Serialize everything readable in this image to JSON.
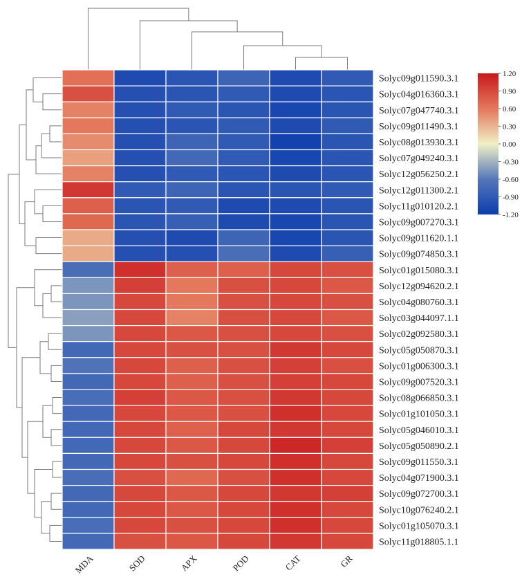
{
  "chart_data": {
    "type": "heatmap",
    "columns": [
      "MDA",
      "SOD",
      "APX",
      "POD",
      "CAT",
      "GR"
    ],
    "rows": [
      "Solyc09g011590.3.1",
      "Solyc04g016360.3.1",
      "Solyc07g047740.3.1",
      "Solyc09g011490.3.1",
      "Solyc08g013930.3.1",
      "Solyc07g049240.3.1",
      "Solyc12g056250.2.1",
      "Solyc12g011300.2.1",
      "Solyc11g010120.2.1",
      "Solyc09g007270.3.1",
      "Solyc09g011620.1.1",
      "Solyc09g074850.3.1",
      "Solyc01g015080.3.1",
      "Solyc12g094620.2.1",
      "Solyc04g080760.3.1",
      "Solyc03g044097.1.1",
      "Solyc02g092580.3.1",
      "Solyc05g050870.3.1",
      "Solyc01g006300.3.1",
      "Solyc09g007520.3.1",
      "Solyc08g066850.3.1",
      "Solyc01g101050.3.1",
      "Solyc05g046010.3.1",
      "Solyc05g050890.2.1",
      "Solyc09g011550.3.1",
      "Solyc04g071900.3.1",
      "Solyc09g072700.3.1",
      "Solyc10g076240.2.1",
      "Solyc01g105070.3.1",
      "Solyc11g018805.1.1"
    ],
    "values": [
      [
        0.65,
        -1.05,
        -0.95,
        -0.8,
        -1.05,
        -0.9
      ],
      [
        0.85,
        -1.0,
        -0.95,
        -0.9,
        -1.05,
        -0.95
      ],
      [
        0.55,
        -1.0,
        -0.9,
        -0.95,
        -1.1,
        -0.95
      ],
      [
        0.6,
        -1.0,
        -0.95,
        -0.9,
        -1.05,
        -0.9
      ],
      [
        0.5,
        -1.0,
        -0.8,
        -0.9,
        -1.15,
        -0.95
      ],
      [
        0.4,
        -1.0,
        -0.75,
        -0.9,
        -1.1,
        -0.95
      ],
      [
        0.55,
        -1.0,
        -0.9,
        -0.95,
        -1.05,
        -0.95
      ],
      [
        1.0,
        -0.9,
        -0.8,
        -0.95,
        -0.95,
        -0.9
      ],
      [
        0.75,
        -0.95,
        -0.9,
        -1.05,
        -1.05,
        -0.95
      ],
      [
        0.7,
        -0.95,
        -0.85,
        -1.05,
        -1.1,
        -0.95
      ],
      [
        0.35,
        -1.0,
        -1.05,
        -0.8,
        -1.1,
        -0.95
      ],
      [
        0.35,
        -1.0,
        -1.0,
        -0.7,
        -1.05,
        -0.85
      ],
      [
        -0.7,
        1.05,
        0.75,
        0.75,
        0.9,
        0.85
      ],
      [
        -0.45,
        0.95,
        0.6,
        0.85,
        0.9,
        0.8
      ],
      [
        -0.45,
        0.9,
        0.6,
        0.85,
        0.9,
        0.85
      ],
      [
        -0.4,
        0.9,
        0.55,
        0.85,
        0.9,
        0.8
      ],
      [
        -0.45,
        0.9,
        0.8,
        0.85,
        0.9,
        0.85
      ],
      [
        -0.75,
        0.9,
        0.85,
        0.85,
        1.0,
        0.9
      ],
      [
        -0.65,
        0.9,
        0.75,
        0.85,
        0.95,
        0.85
      ],
      [
        -0.75,
        0.9,
        0.75,
        0.85,
        0.95,
        0.9
      ],
      [
        -0.7,
        0.95,
        0.8,
        0.85,
        1.0,
        0.9
      ],
      [
        -0.75,
        0.9,
        0.8,
        0.85,
        1.05,
        0.9
      ],
      [
        -0.75,
        0.9,
        0.75,
        0.9,
        1.0,
        0.9
      ],
      [
        -0.75,
        0.9,
        0.8,
        0.9,
        1.1,
        0.95
      ],
      [
        -0.75,
        0.9,
        0.85,
        0.9,
        1.05,
        0.9
      ],
      [
        -0.7,
        0.85,
        0.7,
        0.85,
        1.05,
        0.9
      ],
      [
        -0.75,
        0.9,
        0.8,
        0.9,
        1.0,
        0.95
      ],
      [
        -0.75,
        0.9,
        0.8,
        0.9,
        1.05,
        0.9
      ],
      [
        -0.7,
        0.9,
        0.85,
        0.9,
        1.05,
        0.9
      ],
      [
        -0.75,
        0.85,
        0.8,
        0.9,
        1.0,
        0.9
      ]
    ],
    "color_scale": {
      "min": -1.2,
      "max": 1.2,
      "stops": [
        {
          "value": -1.2,
          "color": "#0d3dae"
        },
        {
          "value": -0.6,
          "color": "#5577b9"
        },
        {
          "value": 0.0,
          "color": "#f0f0c6"
        },
        {
          "value": 0.6,
          "color": "#e4785c"
        },
        {
          "value": 1.2,
          "color": "#c8181c"
        }
      ]
    },
    "legend_ticks": [
      "1.20",
      "0.90",
      "0.60",
      "0.30",
      "0.00",
      "-0.30",
      "-0.60",
      "-0.90",
      "-1.20"
    ],
    "legend_position": "top-right",
    "row_dendrogram": true,
    "column_dendrogram": true,
    "grid_color": "#ffffff"
  }
}
